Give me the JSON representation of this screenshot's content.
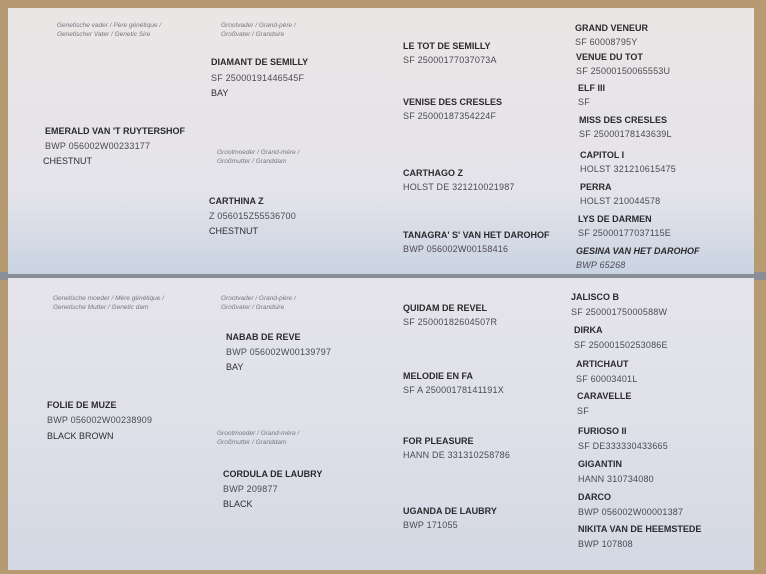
{
  "top": {
    "labels": {
      "sire": "Genetische vader / Père génétique /",
      "sire2": "Genetischer Vater / Genetic Sire",
      "grandsire": "Grootvader / Grand-père /",
      "grandsire2": "Großvater / Grandsire",
      "granddam": "Grootmoeder / Grand-mère /",
      "granddam2": "Großmutter / Granddam"
    },
    "sire": {
      "name": "EMERALD VAN 'T RUYTERSHOF",
      "reg": "BWP   056002W00233177",
      "color": "CHESTNUT"
    },
    "grandsire": {
      "name": "DIAMANT DE SEMILLY",
      "reg": "SF   25000191446545F",
      "color": "BAY"
    },
    "granddam": {
      "name": "CARTHINA Z",
      "reg": "Z   056015Z55536700",
      "color": "CHESTNUT"
    },
    "gen3": [
      {
        "name": "LE TOT DE SEMILLY",
        "reg": "SF   25000177037073A"
      },
      {
        "name": "VENISE DES CRESLES",
        "reg": "SF   25000187354224F"
      },
      {
        "name": "CARTHAGO Z",
        "reg": "HOLST   DE 321210021987"
      },
      {
        "name": "TANAGRA' S' VAN HET DAROHOF",
        "reg": "BWP   056002W00158416"
      }
    ],
    "gen4": [
      {
        "name": "GRAND VENEUR",
        "reg": "SF   60008795Y"
      },
      {
        "name": "VENUE DU TOT",
        "reg": "SF   25000150065553U"
      },
      {
        "name": "ELF III",
        "reg": "SF"
      },
      {
        "name": "MISS DES CRESLES",
        "reg": "SF   25000178143639L"
      },
      {
        "name": "CAPITOL I",
        "reg": "HOLST   321210615475"
      },
      {
        "name": "PERRA",
        "reg": "HOLST   210044578"
      },
      {
        "name": "LYS DE DARMEN",
        "reg": "SF   25000177037115E"
      },
      {
        "name": "GESINA VAN HET DAROHOF",
        "reg": "BWP   65268"
      }
    ]
  },
  "bottom": {
    "labels": {
      "dam": "Genetische moeder / Mère génétique /",
      "dam2": "Genetische Mutter / Genetic dam",
      "grandsire": "Grootvader / Grand-père /",
      "grandsire2": "Großvater / Grandsire",
      "granddam": "Grootmoeder / Grand-mère /",
      "granddam2": "Großmutter / Granddam"
    },
    "dam": {
      "name": "FOLIE DE MUZE",
      "reg": "BWP   056002W00238909",
      "color": "BLACK BROWN"
    },
    "grandsire": {
      "name": "NABAB DE REVE",
      "reg": "BWP   056002W00139797",
      "color": "BAY"
    },
    "granddam": {
      "name": "CORDULA DE LAUBRY",
      "reg": "BWP   209877",
      "color": "BLACK"
    },
    "gen3": [
      {
        "name": "QUIDAM DE REVEL",
        "reg": "SF   25000182604507R"
      },
      {
        "name": "MELODIE EN FA",
        "reg": "SF A   25000178141191X"
      },
      {
        "name": "FOR PLEASURE",
        "reg": "HANN   DE 331310258786"
      },
      {
        "name": "UGANDA DE LAUBRY",
        "reg": "BWP   171055"
      }
    ],
    "gen4": [
      {
        "name": "JALISCO B",
        "reg": "SF   25000175000588W"
      },
      {
        "name": "DIRKA",
        "reg": "SF   25000150253086E"
      },
      {
        "name": "ARTICHAUT",
        "reg": "SF   60003401L"
      },
      {
        "name": "CARAVELLE",
        "reg": "SF"
      },
      {
        "name": "FURIOSO II",
        "reg": "SF   DE333330433665"
      },
      {
        "name": "GIGANTIN",
        "reg": "HANN   310734080"
      },
      {
        "name": "DARCO",
        "reg": "BWP   056002W00001387"
      },
      {
        "name": "NIKITA VAN DE HEEMSTEDE",
        "reg": "BWP   107808"
      }
    ]
  }
}
